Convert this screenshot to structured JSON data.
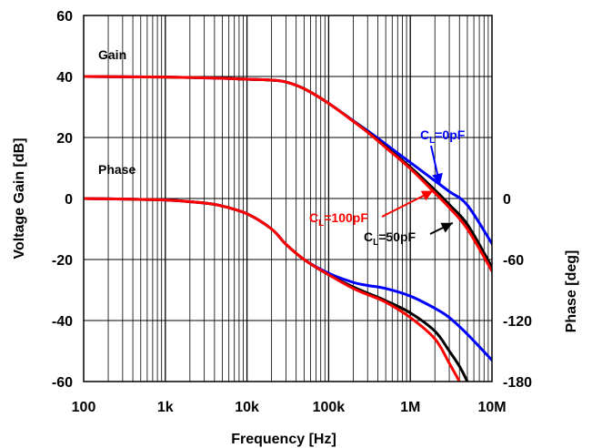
{
  "chart_data": {
    "type": "line",
    "xscale": "log",
    "xlabel": "Frequency [Hz]",
    "ylabel": "Voltage Gain [dB]",
    "y2label": "Phase [deg]",
    "xlim": [
      100,
      10000000
    ],
    "ylim": [
      -60,
      60
    ],
    "y2lim": [
      -180,
      180
    ],
    "grid": true,
    "x_ticks": [
      {
        "value": 100,
        "label": "100"
      },
      {
        "value": 1000,
        "label": "1k"
      },
      {
        "value": 10000,
        "label": "10k"
      },
      {
        "value": 100000,
        "label": "100k"
      },
      {
        "value": 1000000,
        "label": "1M"
      },
      {
        "value": 10000000,
        "label": "10M"
      }
    ],
    "y_ticks": [
      {
        "value": 60,
        "label": "60"
      },
      {
        "value": 40,
        "label": "40"
      },
      {
        "value": 20,
        "label": "20"
      },
      {
        "value": 0,
        "label": "0"
      },
      {
        "value": -20,
        "label": "-20"
      },
      {
        "value": -40,
        "label": "-40"
      },
      {
        "value": -60,
        "label": "-60"
      }
    ],
    "y2_ticks": [
      {
        "value": 0,
        "label": "0"
      },
      {
        "value": -60,
        "label": "-60"
      },
      {
        "value": -120,
        "label": "-120"
      },
      {
        "value": -180,
        "label": "-180"
      }
    ],
    "annotations": {
      "gain": "Gain",
      "phase": "Phase",
      "cl0": {
        "main": "C",
        "sub": "L",
        "rest": "=0pF"
      },
      "cl100": {
        "main": "C",
        "sub": "L",
        "rest": "=100pF"
      },
      "cl50": {
        "main": "C",
        "sub": "L",
        "rest": "=50pF"
      }
    },
    "series": [
      {
        "quantity": "gain",
        "axis": "left",
        "color": "#0000ff",
        "load": "CL=0pF",
        "x": [
          100,
          1000,
          5000,
          10000,
          20000,
          30000,
          50000,
          100000,
          200000,
          300000,
          500000,
          1000000,
          2000000,
          3000000,
          5000000,
          10000000
        ],
        "y": [
          40,
          39.8,
          39.4,
          39.1,
          38.8,
          38.2,
          36,
          31.2,
          25.5,
          22.2,
          17.8,
          11.8,
          5.8,
          2.3,
          -2.2,
          -14.8
        ]
      },
      {
        "quantity": "gain",
        "axis": "left",
        "color": "#000000",
        "load": "CL=50pF",
        "x": [
          100,
          1000,
          5000,
          10000,
          20000,
          30000,
          50000,
          100000,
          200000,
          300000,
          500000,
          1000000,
          2000000,
          3000000,
          5000000,
          10000000
        ],
        "y": [
          40,
          39.8,
          39.4,
          39.1,
          38.8,
          38.2,
          36,
          31.2,
          25.4,
          21.9,
          17,
          10.3,
          2.8,
          -2,
          -8.5,
          -22.5
        ]
      },
      {
        "quantity": "gain",
        "axis": "left",
        "color": "#ff0000",
        "load": "CL=100pF",
        "x": [
          100,
          1000,
          5000,
          10000,
          20000,
          30000,
          50000,
          100000,
          200000,
          300000,
          500000,
          1000000,
          2000000,
          3000000,
          5000000,
          10000000
        ],
        "y": [
          40,
          39.8,
          39.4,
          39.1,
          38.8,
          38.2,
          36,
          31.2,
          25.3,
          21.7,
          16.7,
          9.8,
          1.8,
          -3,
          -10,
          -23.8
        ]
      },
      {
        "quantity": "phase",
        "axis": "right",
        "color": "#0000ff",
        "load": "CL=0pF",
        "x": [
          100,
          1000,
          3000,
          5000,
          10000,
          20000,
          30000,
          50000,
          100000,
          200000,
          300000,
          500000,
          1000000,
          2000000,
          3000000,
          5000000,
          10000000
        ],
        "y": [
          0,
          -1.5,
          -4.5,
          -7.5,
          -15,
          -30,
          -45,
          -60,
          -73.5,
          -82.5,
          -85.5,
          -88.5,
          -96,
          -108,
          -117,
          -133.5,
          -159
        ]
      },
      {
        "quantity": "phase",
        "axis": "right",
        "color": "#000000",
        "load": "CL=50pF",
        "x": [
          100,
          1000,
          3000,
          5000,
          10000,
          20000,
          30000,
          50000,
          100000,
          200000,
          300000,
          500000,
          1000000,
          2000000,
          3000000,
          4000000,
          5000000
        ],
        "y": [
          0,
          -1.5,
          -4.5,
          -7.5,
          -15,
          -30,
          -45,
          -60,
          -75,
          -87,
          -93,
          -100.5,
          -112.5,
          -130.5,
          -150,
          -165,
          -180
        ]
      },
      {
        "quantity": "phase",
        "axis": "right",
        "color": "#ff0000",
        "load": "CL=100pF",
        "x": [
          100,
          1000,
          3000,
          5000,
          10000,
          20000,
          30000,
          50000,
          100000,
          200000,
          300000,
          500000,
          1000000,
          2000000,
          3000000,
          4000000
        ],
        "y": [
          0,
          -1.5,
          -4.5,
          -7.5,
          -15,
          -30,
          -45,
          -60,
          -75,
          -88.5,
          -94.5,
          -102,
          -117,
          -138,
          -162,
          -180
        ]
      }
    ],
    "arrows": [
      {
        "color": "#0000ff",
        "target_x": 2300000,
        "target_y": 4.5
      },
      {
        "color": "#ff0000",
        "target_x": 1900000,
        "target_y": 2.5
      },
      {
        "color": "#000000",
        "target_x": 3300000,
        "target_y": -8
      }
    ]
  }
}
